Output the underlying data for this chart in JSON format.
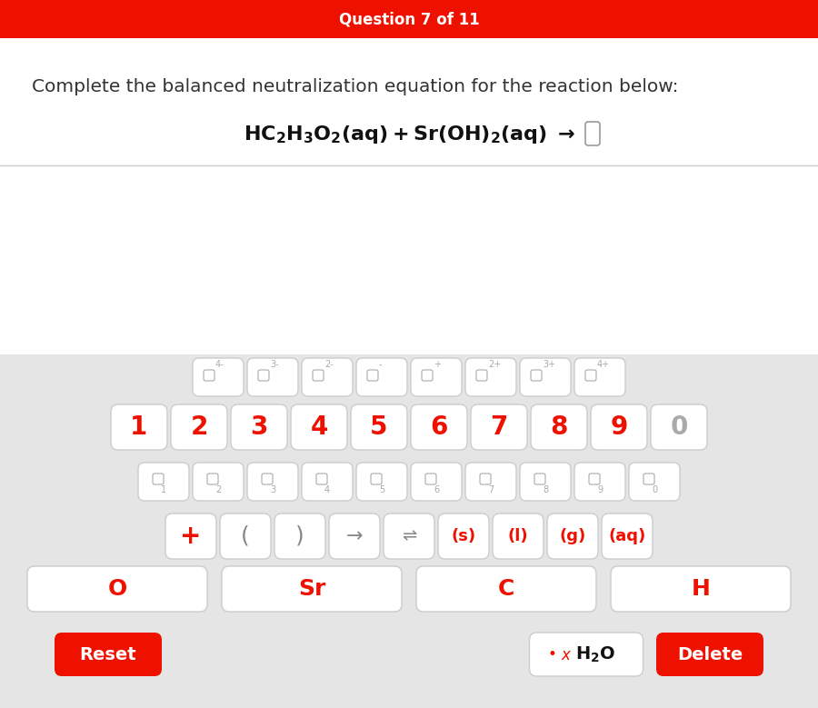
{
  "title_text": "Question 7 of 11",
  "title_bg": "#ee1100",
  "title_fg": "#ffffff",
  "instruction": "Complete the balanced neutralization equation for the reaction below:",
  "bg_white": "#ffffff",
  "bg_gray": "#e5e5e5",
  "btn_red": "#ee1100",
  "superscript_row": [
    "4-",
    "3-",
    "2-",
    "-",
    "+",
    "2+",
    "3+",
    "4+"
  ],
  "number_row": [
    "1",
    "2",
    "3",
    "4",
    "5",
    "6",
    "7",
    "8",
    "9",
    "0"
  ],
  "subscript_row": [
    "1",
    "2",
    "3",
    "4",
    "5",
    "6",
    "7",
    "8",
    "9",
    "0"
  ],
  "symbol_row": [
    "+",
    "(",
    ")",
    "→",
    "⇌",
    "(s)",
    "(l)",
    "(g)",
    "(aq)"
  ],
  "element_row": [
    "O",
    "Sr",
    "C",
    "H"
  ],
  "reset_label": "Reset",
  "delete_label": "Delete"
}
